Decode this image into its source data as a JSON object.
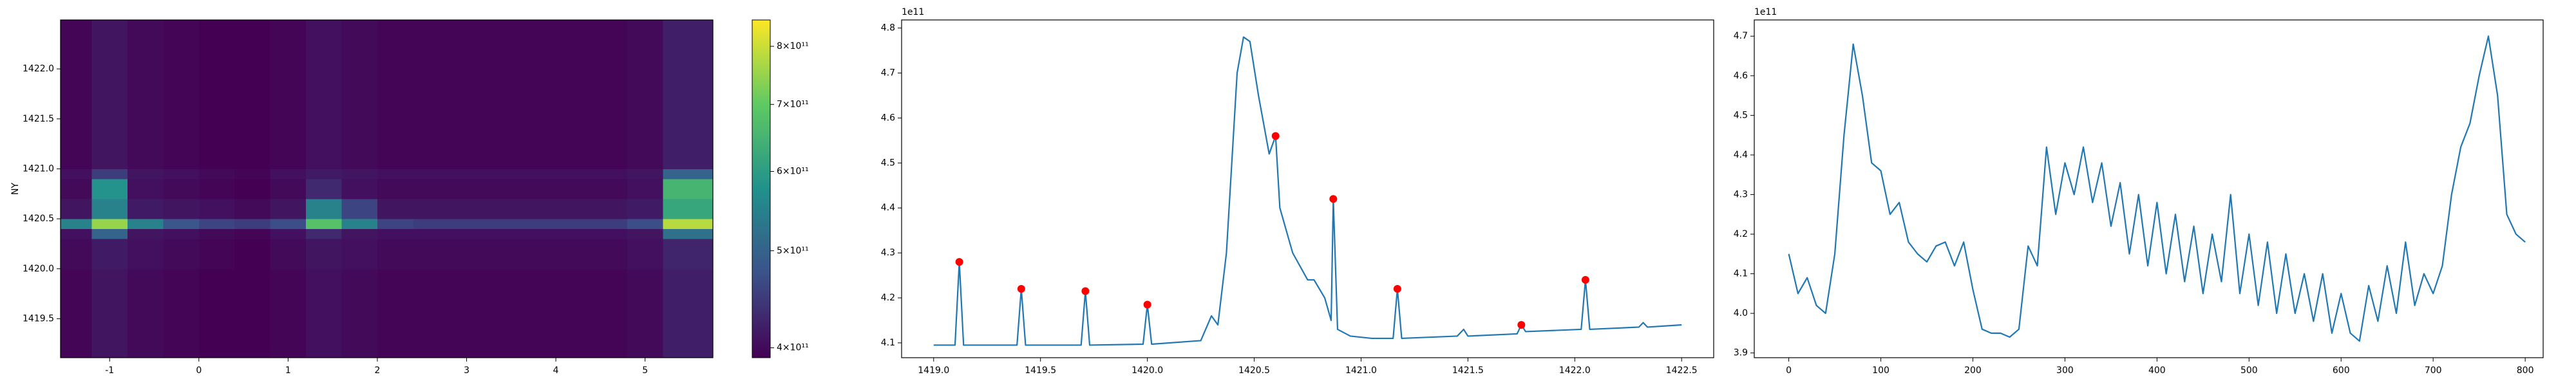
{
  "chart_data": [
    {
      "type": "heatmap",
      "ylabel": "NY",
      "xlim": [
        -1.55,
        5.76
      ],
      "ylim": [
        1419.11,
        1422.49
      ],
      "xticks": [
        -1,
        0,
        1,
        2,
        3,
        4,
        5
      ],
      "yticks": [
        1419.5,
        {
          "value": 1420,
          "label": "1420.0"
        },
        1420.5,
        {
          "value": 1421,
          "label": "1421.0"
        },
        1421.5,
        {
          "value": 1422,
          "label": "1422.0"
        }
      ],
      "x_edges": [
        -1.55,
        -1.2,
        -0.8,
        -0.4,
        0,
        0.4,
        0.8,
        1.2,
        1.6,
        2.0,
        2.4,
        3.2,
        4.0,
        4.8,
        5.2,
        5.76
      ],
      "y_edges": [
        1419.11,
        1419.5,
        1420.0,
        1420.3,
        1420.4,
        1420.5,
        1420.7,
        1420.9,
        1421.0,
        1421.5,
        1422.0,
        1422.49
      ],
      "z": [
        [
          395000000000.0,
          410000000000.0,
          400000000000.0,
          395000000000.0,
          390000000000.0,
          385000000000.0,
          395000000000.0,
          405000000000.0,
          400000000000.0,
          395000000000.0,
          395000000000.0,
          395000000000.0,
          395000000000.0,
          400000000000.0,
          420000000000.0
        ],
        [
          395000000000.0,
          410000000000.0,
          400000000000.0,
          395000000000.0,
          390000000000.0,
          385000000000.0,
          395000000000.0,
          405000000000.0,
          400000000000.0,
          395000000000.0,
          395000000000.0,
          395000000000.0,
          395000000000.0,
          400000000000.0,
          420000000000.0
        ],
        [
          400000000000.0,
          415000000000.0,
          405000000000.0,
          400000000000.0,
          395000000000.0,
          390000000000.0,
          400000000000.0,
          410000000000.0,
          405000000000.0,
          400000000000.0,
          400000000000.0,
          400000000000.0,
          400000000000.0,
          405000000000.0,
          425000000000.0
        ],
        [
          405000000000.0,
          500000000000.0,
          410000000000.0,
          405000000000.0,
          400000000000.0,
          395000000000.0,
          405000000000.0,
          430000000000.0,
          410000000000.0,
          405000000000.0,
          405000000000.0,
          405000000000.0,
          405000000000.0,
          410000000000.0,
          520000000000.0
        ],
        [
          550000000000.0,
          750000000000.0,
          550000000000.0,
          480000000000.0,
          460000000000.0,
          450000000000.0,
          470000000000.0,
          680000000000.0,
          550000000000.0,
          460000000000.0,
          450000000000.0,
          450000000000.0,
          450000000000.0,
          470000000000.0,
          780000000000.0
        ],
        [
          410000000000.0,
          550000000000.0,
          415000000000.0,
          410000000000.0,
          405000000000.0,
          400000000000.0,
          410000000000.0,
          550000000000.0,
          460000000000.0,
          410000000000.0,
          410000000000.0,
          410000000000.0,
          410000000000.0,
          415000000000.0,
          620000000000.0
        ],
        [
          400000000000.0,
          580000000000.0,
          405000000000.0,
          400000000000.0,
          395000000000.0,
          390000000000.0,
          400000000000.0,
          430000000000.0,
          405000000000.0,
          400000000000.0,
          400000000000.0,
          400000000000.0,
          400000000000.0,
          405000000000.0,
          650000000000.0
        ],
        [
          405000000000.0,
          450000000000.0,
          410000000000.0,
          405000000000.0,
          400000000000.0,
          395000000000.0,
          405000000000.0,
          415000000000.0,
          410000000000.0,
          405000000000.0,
          405000000000.0,
          405000000000.0,
          405000000000.0,
          410000000000.0,
          500000000000.0
        ],
        [
          395000000000.0,
          410000000000.0,
          400000000000.0,
          395000000000.0,
          390000000000.0,
          385000000000.0,
          395000000000.0,
          405000000000.0,
          400000000000.0,
          395000000000.0,
          395000000000.0,
          395000000000.0,
          395000000000.0,
          400000000000.0,
          420000000000.0
        ],
        [
          395000000000.0,
          410000000000.0,
          400000000000.0,
          395000000000.0,
          390000000000.0,
          385000000000.0,
          395000000000.0,
          405000000000.0,
          400000000000.0,
          395000000000.0,
          395000000000.0,
          395000000000.0,
          395000000000.0,
          400000000000.0,
          420000000000.0
        ],
        [
          395000000000.0,
          410000000000.0,
          400000000000.0,
          395000000000.0,
          390000000000.0,
          385000000000.0,
          395000000000.0,
          405000000000.0,
          400000000000.0,
          395000000000.0,
          395000000000.0,
          395000000000.0,
          395000000000.0,
          400000000000.0,
          420000000000.0
        ]
      ],
      "colorbar": {
        "colormap": "viridis",
        "scale": "log",
        "lim": [
          391000000000.0,
          850000000000.0
        ],
        "ticks": [
          {
            "value": 400000000000.0,
            "label": "4×10¹¹"
          },
          {
            "value": 500000000000.0,
            "label": "5×10¹¹"
          },
          {
            "value": 600000000000.0,
            "label": "6×10¹¹"
          },
          {
            "value": 700000000000.0,
            "label": "7×10¹¹"
          },
          {
            "value": 800000000000.0,
            "label": "8×10¹¹"
          }
        ]
      }
    },
    {
      "type": "line",
      "offset_label": "1e11",
      "xlim": [
        1418.85,
        1422.65
      ],
      "ylim": [
        4.067,
        4.818
      ],
      "xticks": [
        {
          "value": 1419,
          "label": "1419.0"
        },
        1419.5,
        {
          "value": 1420,
          "label": "1420.0"
        },
        1420.5,
        {
          "value": 1421,
          "label": "1421.0"
        },
        1421.5,
        {
          "value": 1422,
          "label": "1422.0"
        },
        1422.5
      ],
      "yticks": [
        4.1,
        4.2,
        4.3,
        4.4,
        4.5,
        4.6,
        4.7,
        4.8
      ],
      "series": [
        {
          "type": "line",
          "color": "#1f77b4",
          "x": [
            1419.0,
            1419.1,
            1419.12,
            1419.14,
            1419.39,
            1419.41,
            1419.43,
            1419.69,
            1419.71,
            1419.73,
            1419.98,
            1420.0,
            1420.02,
            1420.25,
            1420.3,
            1420.33,
            1420.37,
            1420.42,
            1420.45,
            1420.48,
            1420.52,
            1420.57,
            1420.6,
            1420.62,
            1420.68,
            1420.75,
            1420.78,
            1420.83,
            1420.86,
            1420.87,
            1420.89,
            1420.95,
            1421.05,
            1421.15,
            1421.17,
            1421.19,
            1421.45,
            1421.48,
            1421.5,
            1421.73,
            1421.75,
            1421.77,
            1422.03,
            1422.05,
            1422.07,
            1422.3,
            1422.32,
            1422.34,
            1422.5
          ],
          "values": [
            4.095,
            4.095,
            4.28,
            4.095,
            4.095,
            4.22,
            4.095,
            4.095,
            4.215,
            4.095,
            4.097,
            4.185,
            4.097,
            4.105,
            4.16,
            4.14,
            4.3,
            4.7,
            4.78,
            4.77,
            4.65,
            4.52,
            4.56,
            4.4,
            4.3,
            4.24,
            4.24,
            4.2,
            4.15,
            4.42,
            4.13,
            4.115,
            4.11,
            4.11,
            4.22,
            4.11,
            4.115,
            4.13,
            4.115,
            4.12,
            4.14,
            4.125,
            4.13,
            4.24,
            4.13,
            4.135,
            4.145,
            4.135,
            4.14
          ]
        },
        {
          "type": "scatter",
          "color": "#ff0000",
          "x": [
            1419.12,
            1419.41,
            1419.71,
            1420.0,
            1420.6,
            1420.87,
            1421.17,
            1421.75,
            1422.05
          ],
          "values": [
            4.28,
            4.22,
            4.215,
            4.185,
            4.56,
            4.42,
            4.22,
            4.14,
            4.24
          ]
        }
      ]
    },
    {
      "type": "line",
      "offset_label": "1e11",
      "xlim": [
        -37.5,
        819.5
      ],
      "ylim": [
        3.888,
        4.741
      ],
      "xticks": [
        0,
        100,
        200,
        300,
        400,
        500,
        600,
        700,
        800
      ],
      "yticks": [
        3.9,
        {
          "value": 4,
          "label": "4.0"
        },
        4.1,
        4.2,
        4.3,
        4.4,
        4.5,
        4.6,
        4.7
      ],
      "series": [
        {
          "type": "line",
          "color": "#1f77b4",
          "x": [
            0,
            10,
            20,
            30,
            40,
            50,
            60,
            70,
            80,
            90,
            100,
            110,
            120,
            130,
            140,
            150,
            160,
            170,
            180,
            190,
            200,
            210,
            220,
            230,
            240,
            250,
            260,
            270,
            280,
            290,
            300,
            310,
            320,
            330,
            340,
            350,
            360,
            370,
            380,
            390,
            400,
            410,
            420,
            430,
            440,
            450,
            460,
            470,
            480,
            490,
            500,
            510,
            520,
            530,
            540,
            550,
            560,
            570,
            580,
            590,
            600,
            610,
            620,
            630,
            640,
            650,
            660,
            670,
            680,
            690,
            700,
            710,
            720,
            730,
            740,
            750,
            760,
            770,
            780,
            790,
            800
          ],
          "values": [
            4.15,
            4.05,
            4.09,
            4.02,
            4.0,
            4.15,
            4.45,
            4.68,
            4.55,
            4.38,
            4.36,
            4.25,
            4.28,
            4.18,
            4.15,
            4.13,
            4.17,
            4.18,
            4.12,
            4.18,
            4.06,
            3.96,
            3.95,
            3.95,
            3.94,
            3.96,
            4.17,
            4.12,
            4.42,
            4.25,
            4.38,
            4.3,
            4.42,
            4.28,
            4.38,
            4.22,
            4.33,
            4.15,
            4.3,
            4.12,
            4.28,
            4.1,
            4.25,
            4.08,
            4.22,
            4.05,
            4.2,
            4.08,
            4.3,
            4.05,
            4.2,
            4.02,
            4.18,
            4.0,
            4.15,
            4.0,
            4.1,
            3.98,
            4.1,
            3.95,
            4.05,
            3.95,
            3.93,
            4.07,
            3.98,
            4.12,
            4.0,
            4.18,
            4.02,
            4.1,
            4.05,
            4.12,
            4.3,
            4.42,
            4.48,
            4.6,
            4.7,
            4.55,
            4.25,
            4.2,
            4.18
          ]
        }
      ]
    }
  ]
}
